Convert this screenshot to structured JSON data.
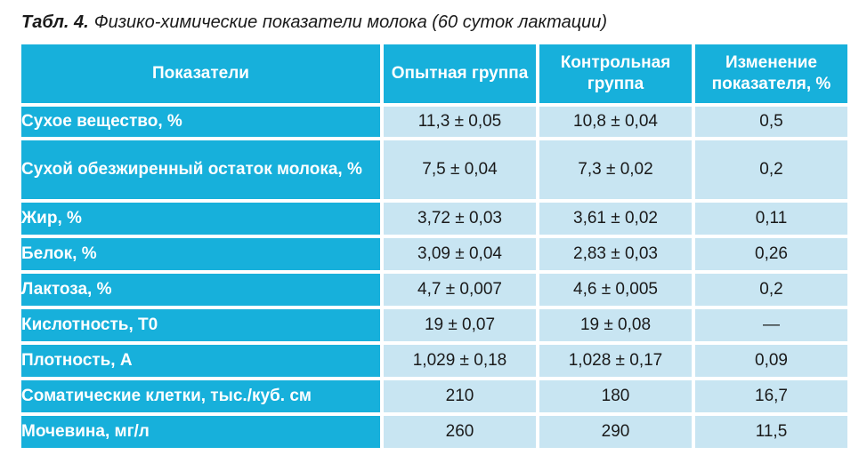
{
  "caption": {
    "label": "Табл. 4.",
    "text": "Физико-химические показатели молока (60 суток лактации)"
  },
  "table": {
    "headers": [
      "Показатели",
      "Опытная группа",
      "Контрольная группа",
      "Изменение показателя, %"
    ],
    "rows": [
      [
        "Сухое вещество, %",
        "11,3 ± 0,05",
        "10,8 ± 0,04",
        "0,5"
      ],
      [
        "Сухой обезжиренный остаток молока, %",
        "7,5 ± 0,04",
        "7,3 ± 0,02",
        "0,2"
      ],
      [
        "Жир, %",
        "3,72 ± 0,03",
        "3,61 ± 0,02",
        "0,11"
      ],
      [
        "Белок, %",
        "3,09 ± 0,04",
        "2,83 ± 0,03",
        "0,26"
      ],
      [
        "Лактоза, %",
        "4,7 ± 0,007",
        "4,6 ± 0,005",
        "0,2"
      ],
      [
        "Кислотность, Т0",
        "19 ± 0,07",
        "19 ± 0,08",
        "—"
      ],
      [
        "Плотность, А",
        "1,029 ± 0,18",
        "1,028 ± 0,17",
        "0,09"
      ],
      [
        "Соматические клетки, тыс./куб. см",
        "210",
        "180",
        "16,7"
      ],
      [
        "Мочевина, мг/л",
        "260",
        "290",
        "11,5"
      ]
    ]
  },
  "colors": {
    "header_bg": "#17b0db",
    "cell_bg": "#c8e5f2",
    "header_text": "#ffffff",
    "body_text": "#1a1a1a"
  }
}
